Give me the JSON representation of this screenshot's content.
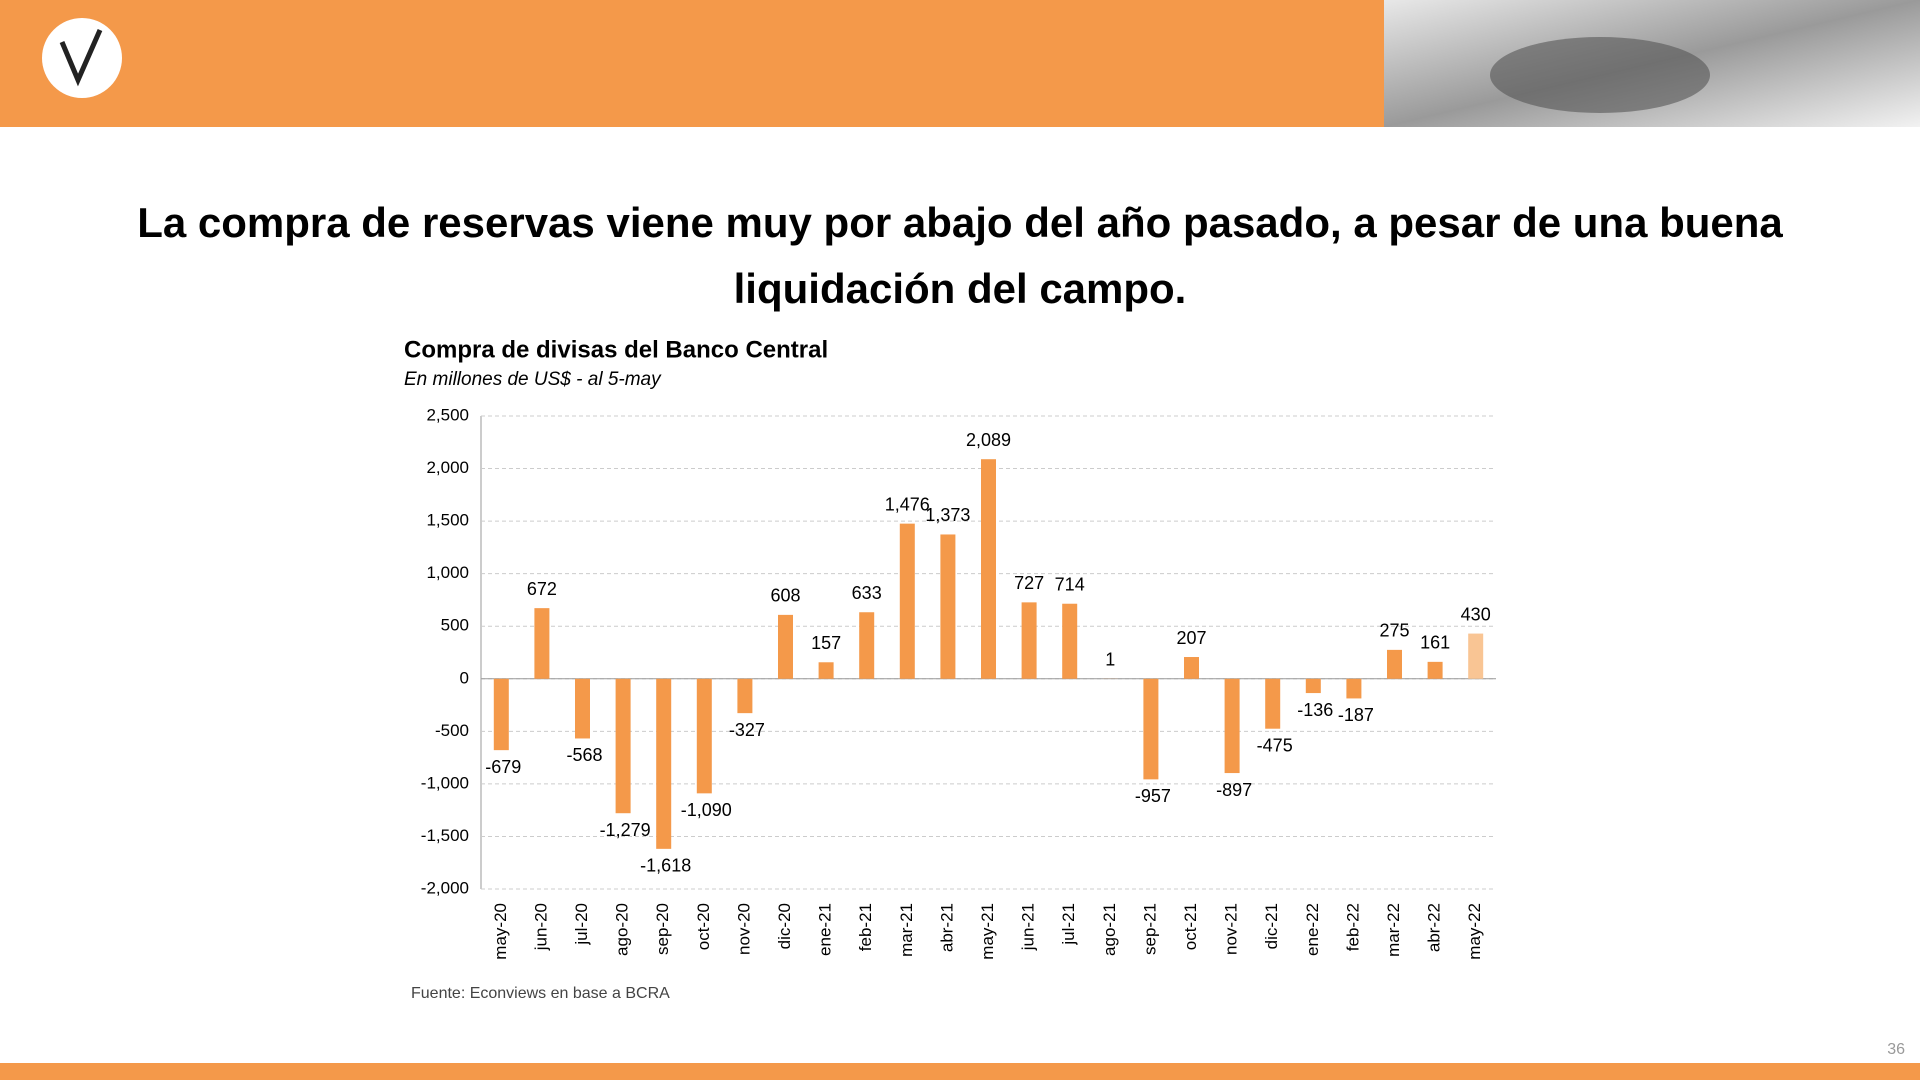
{
  "slide_title": "La compra de reservas viene muy por abajo del año pasado, a pesar de una buena liquidación del campo.",
  "page_number": "36",
  "chart_data": {
    "type": "bar",
    "title": "Compra de divisas del Banco Central",
    "subtitle": "En millones de US$ - al 5-may",
    "source": "Fuente: Econviews en base a BCRA",
    "categories": [
      "may-20",
      "jun-20",
      "jul-20",
      "ago-20",
      "sep-20",
      "oct-20",
      "nov-20",
      "dic-20",
      "ene-21",
      "feb-21",
      "mar-21",
      "abr-21",
      "may-21",
      "jun-21",
      "jul-21",
      "ago-21",
      "sep-21",
      "oct-21",
      "nov-21",
      "dic-21",
      "ene-22",
      "feb-22",
      "mar-22",
      "abr-22",
      "may-22"
    ],
    "values": [
      -679,
      672,
      -568,
      -1279,
      -1618,
      -1090,
      -327,
      608,
      157,
      633,
      1476,
      1373,
      2089,
      727,
      714,
      1,
      -957,
      207,
      -897,
      -475,
      -136,
      -187,
      275,
      161,
      430
    ],
    "value_labels": [
      "-679",
      "672",
      "-568",
      "-1,279",
      "-1,618",
      "-1,090",
      "-327",
      "608",
      "157",
      "633",
      "1,476",
      "1,373",
      "2,089",
      "727",
      "714",
      "1",
      "-957",
      "207",
      "-897",
      "-475",
      "-136",
      "-187",
      "275",
      "161",
      "430"
    ],
    "colors": [
      "#f4994a",
      "#f4994a",
      "#f4994a",
      "#f4994a",
      "#f4994a",
      "#f4994a",
      "#f4994a",
      "#f4994a",
      "#f4994a",
      "#f4994a",
      "#f4994a",
      "#f4994a",
      "#f4994a",
      "#f4994a",
      "#f4994a",
      "#f4994a",
      "#f4994a",
      "#f4994a",
      "#f4994a",
      "#f4994a",
      "#f4994a",
      "#f4994a",
      "#f4994a",
      "#f4994a",
      "#f9c594"
    ],
    "ylim": [
      -2000,
      2500
    ],
    "yticks": [
      {
        "value": -2000,
        "label": "-2,000"
      },
      {
        "value": -1500,
        "label": "-1,500"
      },
      {
        "value": -1000,
        "label": "-1,000"
      },
      -500,
      0,
      500,
      {
        "value": 1000,
        "label": "1,000"
      },
      {
        "value": 1500,
        "label": "1,500"
      },
      {
        "value": 2000,
        "label": "2,000"
      },
      {
        "value": 2500,
        "label": "2,500"
      }
    ],
    "grid": true
  }
}
